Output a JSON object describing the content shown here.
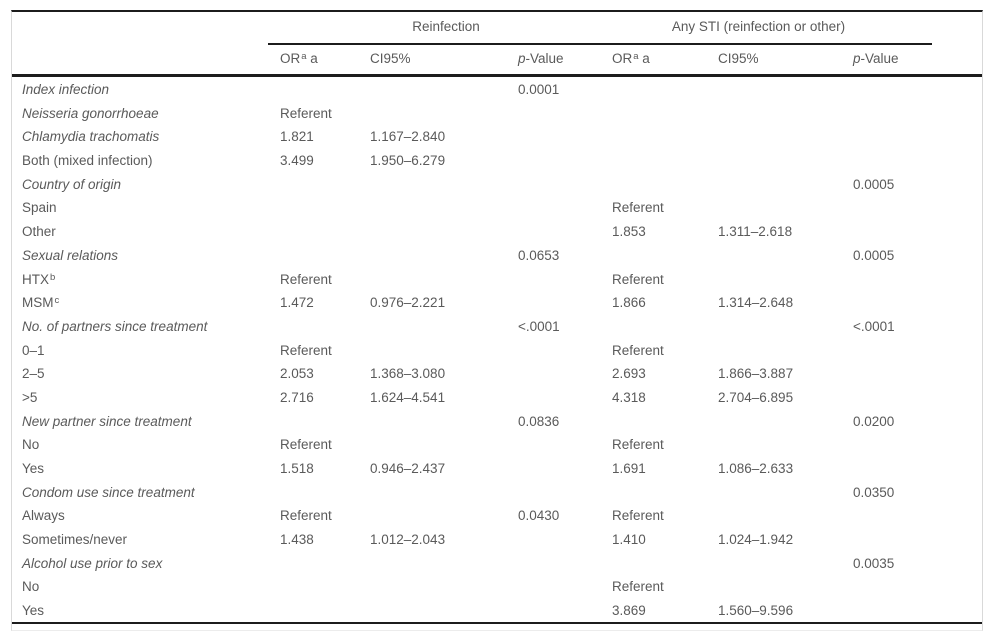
{
  "table": {
    "group_headers": {
      "reinfection": "Reinfection",
      "any_sti": "Any STI (reinfection or other)"
    },
    "col_headers": {
      "or_pre": "OR",
      "or_sup": "a",
      "or_post": " a",
      "ci": "CI95%",
      "p_italic": "p",
      "p_post": "-Value"
    }
  },
  "rows": [
    {
      "label": "Index infection",
      "italic": true,
      "p1": "0.0001"
    },
    {
      "label": "Neisseria gonorrhoeae",
      "italic": true,
      "or1": "Referent"
    },
    {
      "label": "Chlamydia trachomatis",
      "italic": true,
      "or1": "1.821",
      "ci1": "1.167–2.840"
    },
    {
      "label": "Both (mixed infection)",
      "or1": "3.499",
      "ci1": "1.950–6.279"
    },
    {
      "label": "Country of origin",
      "italic": true,
      "p2": "0.0005"
    },
    {
      "label": "Spain",
      "or2": "Referent"
    },
    {
      "label": "Other",
      "or2": "1.853",
      "ci2": "1.311–2.618"
    },
    {
      "label": "Sexual relations",
      "italic": true,
      "p1": "0.0653",
      "p2": "0.0005"
    },
    {
      "label": "HTX",
      "sup": "b",
      "or1": "Referent",
      "or2": "Referent"
    },
    {
      "label": "MSM",
      "sup": "c",
      "or1": "1.472",
      "ci1": "0.976–2.221",
      "or2": "1.866",
      "ci2": "1.314–2.648"
    },
    {
      "label": "No. of partners since treatment",
      "italic": true,
      "p1": "<.0001",
      "p2": "<.0001"
    },
    {
      "label": "0–1",
      "or1": "Referent",
      "or2": "Referent"
    },
    {
      "label": "2–5",
      "or1": "2.053",
      "ci1": "1.368–3.080",
      "or2": "2.693",
      "ci2": "1.866–3.887"
    },
    {
      "label": ">5",
      "or1": "2.716",
      "ci1": "1.624–4.541",
      "or2": "4.318",
      "ci2": "2.704–6.895"
    },
    {
      "label": "New partner since treatment",
      "italic": true,
      "p1": "0.0836",
      "p2": "0.0200"
    },
    {
      "label": "No",
      "or1": "Referent",
      "or2": "Referent"
    },
    {
      "label": "Yes",
      "or1": "1.518",
      "ci1": "0.946–2.437",
      "or2": "1.691",
      "ci2": "1.086–2.633"
    },
    {
      "label": "Condom use since treatment",
      "italic": true,
      "p2": "0.0350"
    },
    {
      "label": "Always",
      "or1": "Referent",
      "p1": "0.0430",
      "or2": "Referent"
    },
    {
      "label": "Sometimes/never",
      "or1": "1.438",
      "ci1": "1.012–2.043",
      "or2": "1.410",
      "ci2": "1.024–1.942"
    },
    {
      "label": "Alcohol use prior to sex",
      "italic": true,
      "p2": "0.0035"
    },
    {
      "label": "No",
      "or2": "Referent"
    },
    {
      "label": "Yes",
      "or2": "3.869",
      "ci2": "1.560–9.596"
    }
  ]
}
